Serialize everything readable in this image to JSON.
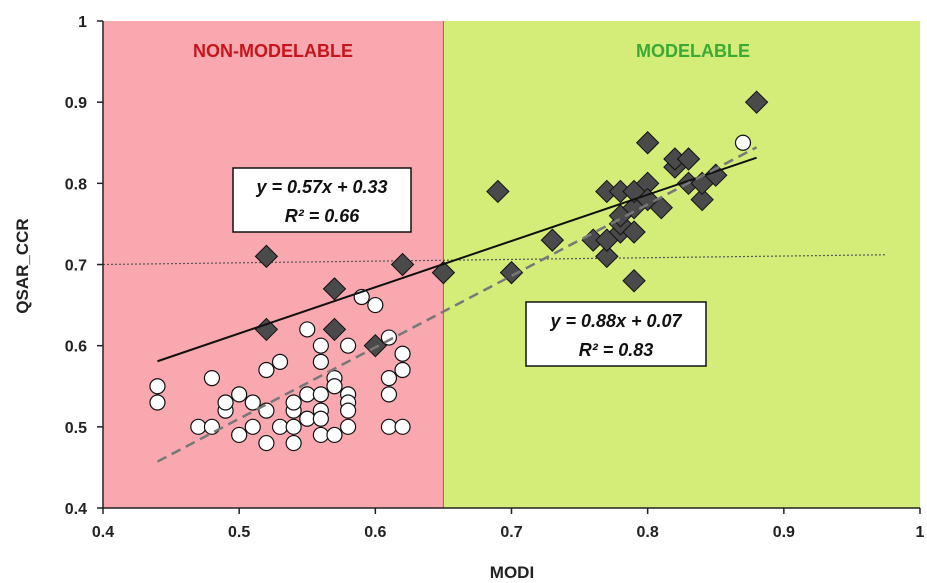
{
  "chart_data": {
    "type": "scatter",
    "xlabel": "MODI",
    "ylabel": "QSAR_CCR",
    "xlim": [
      0.4,
      1.0
    ],
    "ylim": [
      0.4,
      1.0
    ],
    "x_ticks": [
      "0.4",
      "0.5",
      "0.6",
      "0.7",
      "0.8",
      "0.9",
      "1"
    ],
    "y_ticks": [
      "0.4",
      "0.5",
      "0.6",
      "0.7",
      "0.8",
      "0.9",
      "1"
    ],
    "grid": false,
    "regions": [
      {
        "label": "NON-MODELABLE",
        "x_from": 0.4,
        "x_to": 0.65,
        "color": "#f8a8ae",
        "label_color": "#c4161c"
      },
      {
        "label": "MODELABLE",
        "x_from": 0.65,
        "x_to": 1.0,
        "color": "#d4ec78",
        "label_color": "#3aaa35"
      }
    ],
    "threshold_y": 0.7,
    "series": [
      {
        "marker": "diamond",
        "color": "#4a4a4a",
        "points": [
          [
            0.52,
            0.71
          ],
          [
            0.52,
            0.62
          ],
          [
            0.57,
            0.67
          ],
          [
            0.57,
            0.62
          ],
          [
            0.6,
            0.6
          ],
          [
            0.62,
            0.7
          ],
          [
            0.65,
            0.69
          ],
          [
            0.69,
            0.79
          ],
          [
            0.7,
            0.69
          ],
          [
            0.73,
            0.73
          ],
          [
            0.76,
            0.73
          ],
          [
            0.77,
            0.79
          ],
          [
            0.77,
            0.71
          ],
          [
            0.77,
            0.73
          ],
          [
            0.78,
            0.74
          ],
          [
            0.78,
            0.75
          ],
          [
            0.78,
            0.76
          ],
          [
            0.78,
            0.79
          ],
          [
            0.79,
            0.74
          ],
          [
            0.79,
            0.77
          ],
          [
            0.79,
            0.79
          ],
          [
            0.79,
            0.68
          ],
          [
            0.8,
            0.8
          ],
          [
            0.8,
            0.78
          ],
          [
            0.8,
            0.85
          ],
          [
            0.81,
            0.77
          ],
          [
            0.82,
            0.82
          ],
          [
            0.82,
            0.83
          ],
          [
            0.83,
            0.83
          ],
          [
            0.83,
            0.8
          ],
          [
            0.84,
            0.78
          ],
          [
            0.84,
            0.8
          ],
          [
            0.85,
            0.81
          ],
          [
            0.88,
            0.9
          ]
        ]
      },
      {
        "marker": "circle",
        "color": "#ffffff",
        "points": [
          [
            0.44,
            0.55
          ],
          [
            0.44,
            0.53
          ],
          [
            0.47,
            0.5
          ],
          [
            0.48,
            0.56
          ],
          [
            0.48,
            0.5
          ],
          [
            0.49,
            0.52
          ],
          [
            0.49,
            0.53
          ],
          [
            0.5,
            0.54
          ],
          [
            0.5,
            0.49
          ],
          [
            0.51,
            0.53
          ],
          [
            0.51,
            0.5
          ],
          [
            0.52,
            0.52
          ],
          [
            0.52,
            0.48
          ],
          [
            0.52,
            0.57
          ],
          [
            0.53,
            0.58
          ],
          [
            0.53,
            0.5
          ],
          [
            0.54,
            0.52
          ],
          [
            0.54,
            0.53
          ],
          [
            0.54,
            0.5
          ],
          [
            0.54,
            0.48
          ],
          [
            0.55,
            0.62
          ],
          [
            0.55,
            0.54
          ],
          [
            0.55,
            0.51
          ],
          [
            0.56,
            0.6
          ],
          [
            0.56,
            0.58
          ],
          [
            0.56,
            0.54
          ],
          [
            0.56,
            0.52
          ],
          [
            0.56,
            0.51
          ],
          [
            0.56,
            0.49
          ],
          [
            0.57,
            0.56
          ],
          [
            0.57,
            0.55
          ],
          [
            0.57,
            0.49
          ],
          [
            0.58,
            0.6
          ],
          [
            0.58,
            0.54
          ],
          [
            0.58,
            0.53
          ],
          [
            0.58,
            0.52
          ],
          [
            0.58,
            0.5
          ],
          [
            0.59,
            0.66
          ],
          [
            0.6,
            0.65
          ],
          [
            0.61,
            0.61
          ],
          [
            0.61,
            0.56
          ],
          [
            0.61,
            0.54
          ],
          [
            0.61,
            0.5
          ],
          [
            0.62,
            0.59
          ],
          [
            0.62,
            0.57
          ],
          [
            0.62,
            0.5
          ],
          [
            0.87,
            0.85
          ]
        ]
      }
    ],
    "fits": [
      {
        "equation": "y = 0.57x + 0.33",
        "r2": "R² = 0.66",
        "slope": 0.57,
        "intercept": 0.33,
        "x_range": [
          0.44,
          0.88
        ],
        "style": "solid",
        "color": "#111111"
      },
      {
        "equation": "y = 0.88x + 0.07",
        "r2": "R² = 0.83",
        "slope": 0.88,
        "intercept": 0.07,
        "x_range": [
          0.44,
          0.88
        ],
        "style": "dashed",
        "color": "#777777"
      }
    ]
  }
}
